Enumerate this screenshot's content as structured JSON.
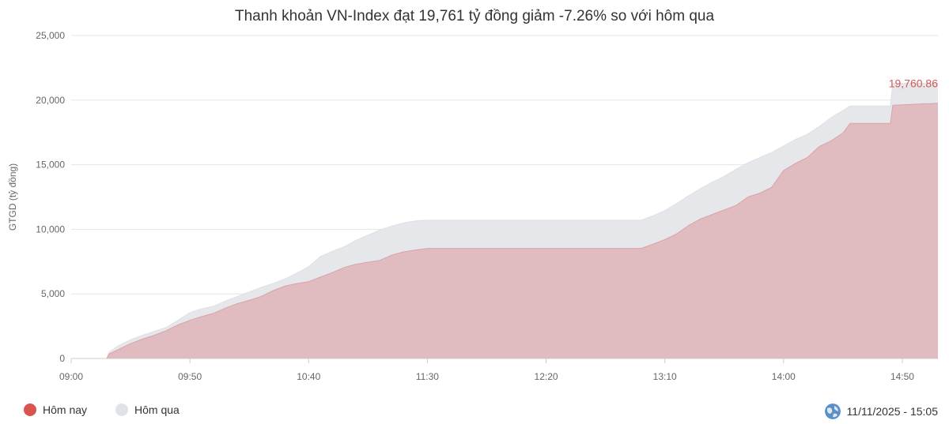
{
  "chart_data": {
    "type": "area",
    "title": "Thanh khoản VN-Index đạt 19,761 tỷ đồng giảm -7.26% so với hôm qua",
    "ylabel": "GTGD (tỷ đồng)",
    "xlabel": "",
    "ylim": [
      0,
      25000
    ],
    "y_ticks": [
      "25,000",
      "20,000",
      "15,000",
      "10,000",
      "5,000",
      "0"
    ],
    "x_ticks": [
      "09:00",
      "09:50",
      "10:40",
      "11:30",
      "12:20",
      "13:10",
      "14:00",
      "14:50"
    ],
    "grid": true,
    "legend_position": "bottom-left",
    "last_value_label": "19,760.86",
    "series": [
      {
        "name": "Hôm nay",
        "color": "#d9534f",
        "fill": "#e0bcc1",
        "points": [
          [
            "09:15",
            0
          ],
          [
            "09:16",
            350
          ],
          [
            "09:20",
            700
          ],
          [
            "09:25",
            1150
          ],
          [
            "09:30",
            1500
          ],
          [
            "09:35",
            1800
          ],
          [
            "09:40",
            2150
          ],
          [
            "09:45",
            2600
          ],
          [
            "09:50",
            2950
          ],
          [
            "09:55",
            3250
          ],
          [
            "10:00",
            3500
          ],
          [
            "10:05",
            3900
          ],
          [
            "10:10",
            4250
          ],
          [
            "10:15",
            4500
          ],
          [
            "10:20",
            4800
          ],
          [
            "10:25",
            5250
          ],
          [
            "10:30",
            5600
          ],
          [
            "10:35",
            5800
          ],
          [
            "10:40",
            5950
          ],
          [
            "10:45",
            6300
          ],
          [
            "10:50",
            6650
          ],
          [
            "10:55",
            7050
          ],
          [
            "11:00",
            7300
          ],
          [
            "11:05",
            7450
          ],
          [
            "11:10",
            7600
          ],
          [
            "11:15",
            8000
          ],
          [
            "11:20",
            8250
          ],
          [
            "11:25",
            8400
          ],
          [
            "11:30",
            8520
          ],
          [
            "13:00",
            8520
          ],
          [
            "13:05",
            8850
          ],
          [
            "13:10",
            9200
          ],
          [
            "13:15",
            9650
          ],
          [
            "13:20",
            10300
          ],
          [
            "13:25",
            10800
          ],
          [
            "13:30",
            11150
          ],
          [
            "13:35",
            11500
          ],
          [
            "13:40",
            11850
          ],
          [
            "13:45",
            12500
          ],
          [
            "13:50",
            12800
          ],
          [
            "13:55",
            13250
          ],
          [
            "14:00",
            14550
          ],
          [
            "14:05",
            15100
          ],
          [
            "14:10",
            15550
          ],
          [
            "14:15",
            16400
          ],
          [
            "14:20",
            16850
          ],
          [
            "14:25",
            17450
          ],
          [
            "14:28",
            18200
          ],
          [
            "14:45",
            18200
          ],
          [
            "14:46",
            19600
          ],
          [
            "15:05",
            19761
          ]
        ]
      },
      {
        "name": "Hôm qua",
        "color": "#dfe3e8",
        "fill": "#e5e7ea",
        "points": [
          [
            "09:15",
            0
          ],
          [
            "09:16",
            500
          ],
          [
            "09:20",
            1000
          ],
          [
            "09:25",
            1450
          ],
          [
            "09:30",
            1800
          ],
          [
            "09:35",
            2100
          ],
          [
            "09:40",
            2400
          ],
          [
            "09:45",
            2950
          ],
          [
            "09:50",
            3550
          ],
          [
            "09:55",
            3850
          ],
          [
            "10:00",
            4050
          ],
          [
            "10:05",
            4450
          ],
          [
            "10:10",
            4800
          ],
          [
            "10:15",
            5150
          ],
          [
            "10:20",
            5500
          ],
          [
            "10:25",
            5800
          ],
          [
            "10:30",
            6150
          ],
          [
            "10:35",
            6600
          ],
          [
            "10:40",
            7100
          ],
          [
            "10:45",
            7900
          ],
          [
            "10:50",
            8300
          ],
          [
            "10:55",
            8650
          ],
          [
            "11:00",
            9150
          ],
          [
            "11:05",
            9550
          ],
          [
            "11:10",
            9950
          ],
          [
            "11:15",
            10250
          ],
          [
            "11:20",
            10500
          ],
          [
            "11:25",
            10650
          ],
          [
            "11:30",
            10700
          ],
          [
            "13:00",
            10700
          ],
          [
            "13:05",
            11050
          ],
          [
            "13:10",
            11450
          ],
          [
            "13:15",
            12000
          ],
          [
            "13:20",
            12600
          ],
          [
            "13:25",
            13150
          ],
          [
            "13:30",
            13650
          ],
          [
            "13:35",
            14100
          ],
          [
            "13:40",
            14650
          ],
          [
            "13:45",
            15150
          ],
          [
            "13:50",
            15550
          ],
          [
            "13:55",
            15950
          ],
          [
            "14:00",
            16450
          ],
          [
            "14:05",
            16950
          ],
          [
            "14:10",
            17350
          ],
          [
            "14:15",
            17950
          ],
          [
            "14:20",
            18650
          ],
          [
            "14:25",
            19200
          ],
          [
            "14:28",
            19550
          ],
          [
            "14:45",
            19550
          ],
          [
            "14:46",
            21300
          ],
          [
            "15:05",
            21300
          ]
        ]
      }
    ]
  },
  "legend": {
    "today_label": "Hôm nay",
    "today_color": "#d9534f",
    "yesterday_label": "Hôm qua",
    "yesterday_color": "#dfe3e8"
  },
  "timestamp": {
    "icon": "globe-icon",
    "text": "11/11/2025 - 15:05"
  }
}
